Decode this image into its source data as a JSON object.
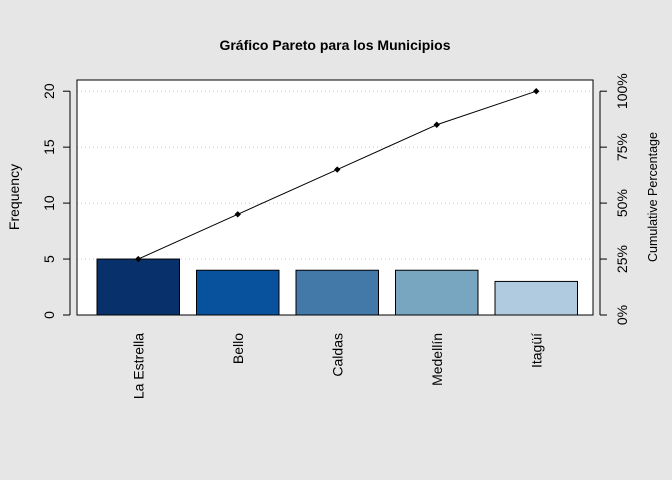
{
  "chart_data": {
    "type": "bar",
    "title": "Gráfico Pareto para los Municipios",
    "categories": [
      "La Estrella",
      "Bello",
      "Caldas",
      "Medellín",
      "Itagüí"
    ],
    "values": [
      5,
      4,
      4,
      4,
      3
    ],
    "bar_colors": [
      "#08306b",
      "#08519c",
      "#4279a8",
      "#78a5bf",
      "#b0cbe0"
    ],
    "ylabel": "Frequency",
    "ylim": [
      0,
      21
    ],
    "yticks": [
      0,
      5,
      10,
      15,
      20
    ],
    "y2label": "Cumulative Percentage",
    "y2ticks": [
      "0%",
      "25%",
      "50%",
      "75%",
      "100%"
    ],
    "cumulative_percent": [
      25,
      45,
      65,
      85,
      100
    ],
    "grid": "horizontal dotted"
  }
}
